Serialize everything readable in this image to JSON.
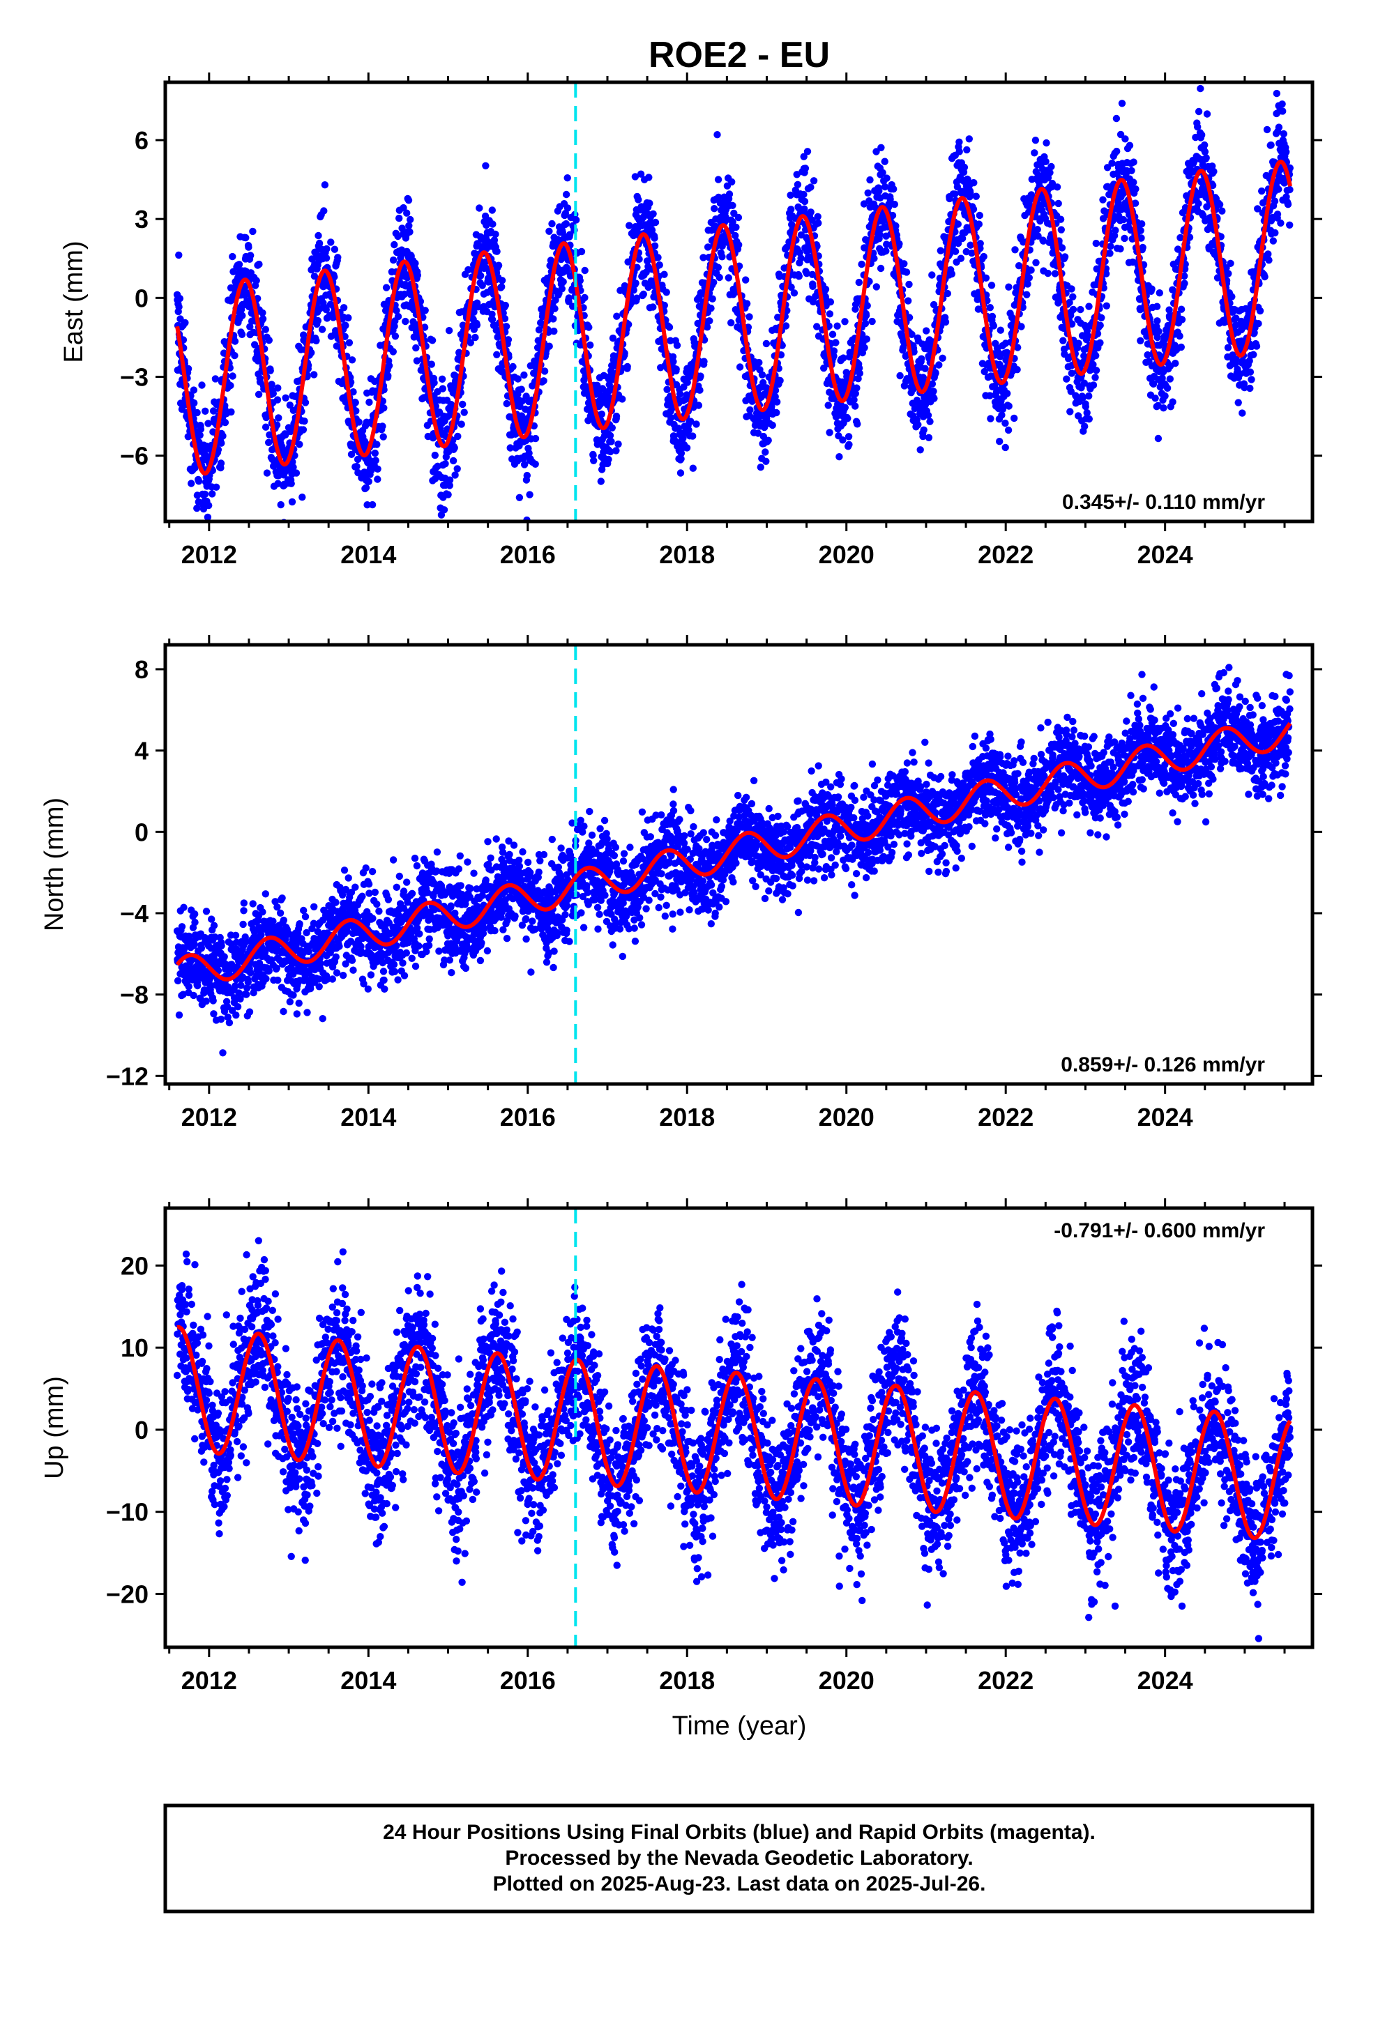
{
  "chart_data": [
    {
      "type": "scatter",
      "title": "ROE2 - EU",
      "ylabel": "East (mm)",
      "xlim": [
        2011.45,
        2025.85
      ],
      "ylim": [
        -8.5,
        8.2
      ],
      "yticks": [
        -6,
        -3,
        0,
        3,
        6
      ],
      "xticks": [
        2012,
        2014,
        2016,
        2018,
        2020,
        2022,
        2024
      ],
      "rate_text": "0.345+/- 0.110 mm/yr",
      "rate_position": "bottom-right",
      "equipment_change_year": 2016.6,
      "series": [
        {
          "role": "daily_positions",
          "color": "#0000ff",
          "x_start": 2011.6,
          "x_end": 2025.57,
          "offset": -3.2,
          "trend_mm_per_yr": 0.345,
          "amplitude": 3.6,
          "peak_phase_yr": 0.45,
          "scatter": 1.1
        },
        {
          "role": "model_fit",
          "color": "#ff0000",
          "x_start": 2011.6,
          "x_end": 2025.57,
          "offset": -3.2,
          "trend_mm_per_yr": 0.345,
          "amplitude": 3.6,
          "peak_phase_yr": 0.45
        }
      ]
    },
    {
      "type": "scatter",
      "title": "",
      "ylabel": "North (mm)",
      "xlim": [
        2011.45,
        2025.85
      ],
      "ylim": [
        -12.4,
        9.2
      ],
      "yticks": [
        -12,
        -8,
        -4,
        0,
        4,
        8
      ],
      "xticks": [
        2012,
        2014,
        2016,
        2018,
        2020,
        2022,
        2024
      ],
      "rate_text": "0.859+/- 0.126 mm/yr",
      "rate_position": "bottom-right",
      "equipment_change_year": 2016.6,
      "series": [
        {
          "role": "daily_positions",
          "color": "#0000ff",
          "x_start": 2011.6,
          "x_end": 2025.57,
          "offset": -7.0,
          "trend_mm_per_yr": 0.859,
          "amplitude": 0.8,
          "peak_phase_yr": 0.75,
          "scatter": 1.1
        },
        {
          "role": "model_fit",
          "color": "#ff0000",
          "x_start": 2011.6,
          "x_end": 2025.57,
          "offset": -7.0,
          "trend_mm_per_yr": 0.859,
          "amplitude": 0.8,
          "peak_phase_yr": 0.75
        }
      ]
    },
    {
      "type": "scatter",
      "title": "",
      "xlabel": "Time (year)",
      "ylabel": "Up (mm)",
      "xlim": [
        2011.45,
        2025.85
      ],
      "ylim": [
        -26.5,
        27
      ],
      "yticks": [
        -20,
        -10,
        0,
        10,
        20
      ],
      "xticks": [
        2012,
        2014,
        2016,
        2018,
        2020,
        2022,
        2024
      ],
      "rate_text": "-0.791+/- 0.600 mm/yr",
      "rate_position": "top-right",
      "equipment_change_year": 2016.6,
      "series": [
        {
          "role": "daily_positions",
          "color": "#0000ff",
          "x_start": 2011.6,
          "x_end": 2025.57,
          "offset": 5.0,
          "trend_mm_per_yr": -0.791,
          "amplitude": 7.5,
          "peak_phase_yr": 0.62,
          "scatter": 4.5
        },
        {
          "role": "model_fit",
          "color": "#ff0000",
          "x_start": 2011.6,
          "x_end": 2025.57,
          "offset": 5.0,
          "trend_mm_per_yr": -0.791,
          "amplitude": 7.5,
          "peak_phase_yr": 0.62
        }
      ]
    }
  ],
  "footer": {
    "line1": "24 Hour Positions Using Final Orbits (blue) and Rapid Orbits (magenta).",
    "line2": "Processed by the Nevada Geodetic Laboratory.",
    "line3": "Plotted on 2025-Aug-23. Last data on 2025-Jul-26."
  }
}
